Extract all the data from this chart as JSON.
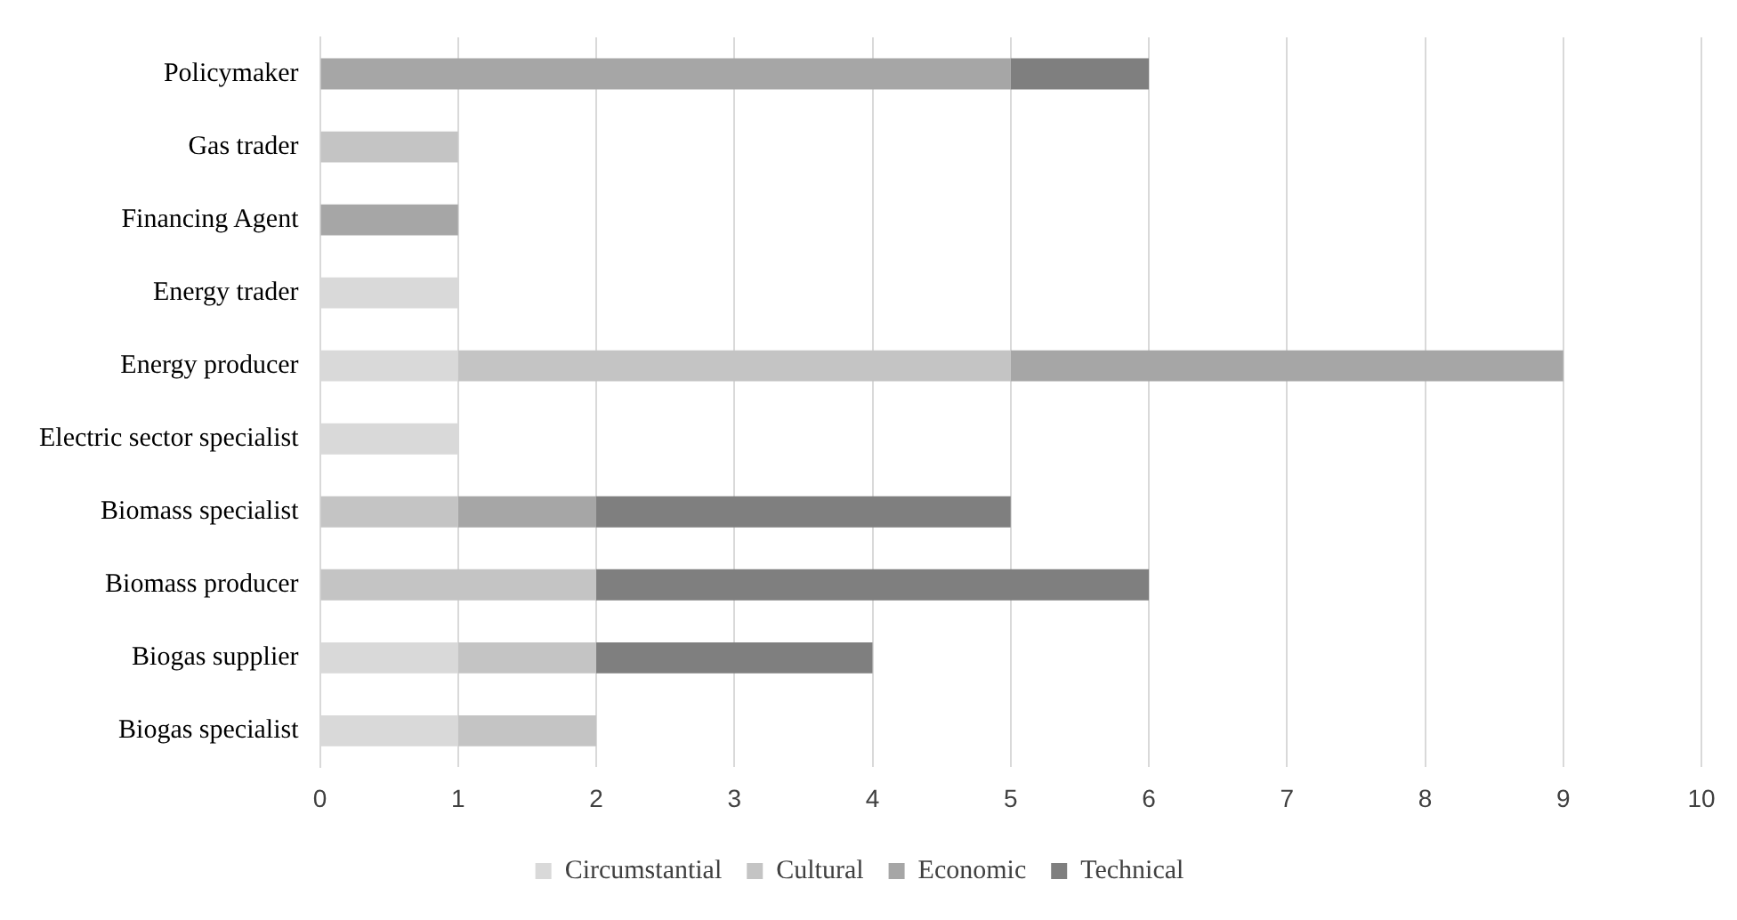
{
  "chart_data": {
    "type": "bar",
    "orientation": "horizontal",
    "stacked": true,
    "categories": [
      "Policymaker",
      "Gas trader",
      "Financing Agent",
      "Energy trader",
      "Energy producer",
      "Electric sector specialist",
      "Biomass specialist",
      "Biomass producer",
      "Biogas supplier",
      "Biogas specialist"
    ],
    "series": [
      {
        "name": "Circumstantial",
        "color": "#d9d9d9",
        "values": [
          null,
          null,
          null,
          1,
          1,
          1,
          null,
          null,
          1,
          1
        ]
      },
      {
        "name": "Cultural",
        "color": "#c4c4c4",
        "values": [
          null,
          1,
          null,
          null,
          4,
          null,
          1,
          2,
          1,
          1
        ]
      },
      {
        "name": "Economic",
        "color": "#a6a6a6",
        "values": [
          5,
          null,
          1,
          null,
          4,
          null,
          1,
          null,
          null,
          null
        ]
      },
      {
        "name": "Technical",
        "color": "#7f7f7f",
        "values": [
          1,
          null,
          null,
          null,
          null,
          null,
          3,
          4,
          2,
          null
        ]
      }
    ],
    "xlim": [
      0,
      10
    ],
    "xticks": [
      0,
      1,
      2,
      3,
      4,
      5,
      6,
      7,
      8,
      9,
      10
    ],
    "grid": "x",
    "legend": "bottom"
  }
}
